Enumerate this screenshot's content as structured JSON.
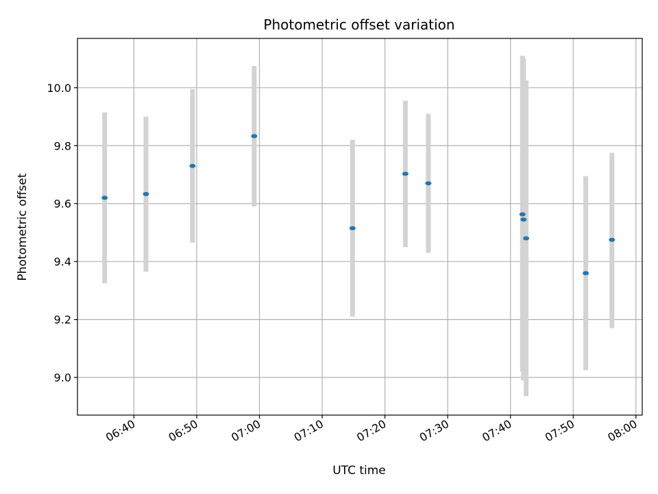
{
  "chart_data": {
    "type": "scatter",
    "title": "Photometric offset variation",
    "xlabel": "UTC time",
    "ylabel": "Photometric offset",
    "xlim": [
      "06:31:00",
      "08:01:00"
    ],
    "ylim": [
      8.87,
      10.17
    ],
    "grid": true,
    "x_ticks": [
      "06:40",
      "06:50",
      "07:00",
      "07:10",
      "07:20",
      "07:30",
      "07:40",
      "07:50",
      "08:00"
    ],
    "y_ticks": [
      "9.0",
      "9.2",
      "9.4",
      "9.6",
      "9.8",
      "10.0"
    ],
    "point_color": "#1f77b4",
    "errorbar_color": "#d3d3d3",
    "points": [
      {
        "x": "06:35:20",
        "y": 9.62,
        "yerr_low": 9.325,
        "yerr_high": 9.915
      },
      {
        "x": "06:41:55",
        "y": 9.633,
        "yerr_low": 9.365,
        "yerr_high": 9.9
      },
      {
        "x": "06:49:20",
        "y": 9.73,
        "yerr_low": 9.465,
        "yerr_high": 9.995
      },
      {
        "x": "06:59:10",
        "y": 9.833,
        "yerr_low": 9.59,
        "yerr_high": 10.075
      },
      {
        "x": "07:14:50",
        "y": 9.515,
        "yerr_low": 9.21,
        "yerr_high": 9.82
      },
      {
        "x": "07:23:15",
        "y": 9.703,
        "yerr_low": 9.45,
        "yerr_high": 9.955
      },
      {
        "x": "07:26:55",
        "y": 9.67,
        "yerr_low": 9.43,
        "yerr_high": 9.91
      },
      {
        "x": "07:41:55",
        "y": 9.563,
        "yerr_low": 9.02,
        "yerr_high": 10.11
      },
      {
        "x": "07:42:05",
        "y": 9.545,
        "yerr_low": 8.99,
        "yerr_high": 10.1
      },
      {
        "x": "07:42:30",
        "y": 9.48,
        "yerr_low": 8.935,
        "yerr_high": 10.025
      },
      {
        "x": "07:52:00",
        "y": 9.36,
        "yerr_low": 9.025,
        "yerr_high": 9.695
      },
      {
        "x": "07:56:10",
        "y": 9.475,
        "yerr_low": 9.17,
        "yerr_high": 9.775
      }
    ]
  }
}
